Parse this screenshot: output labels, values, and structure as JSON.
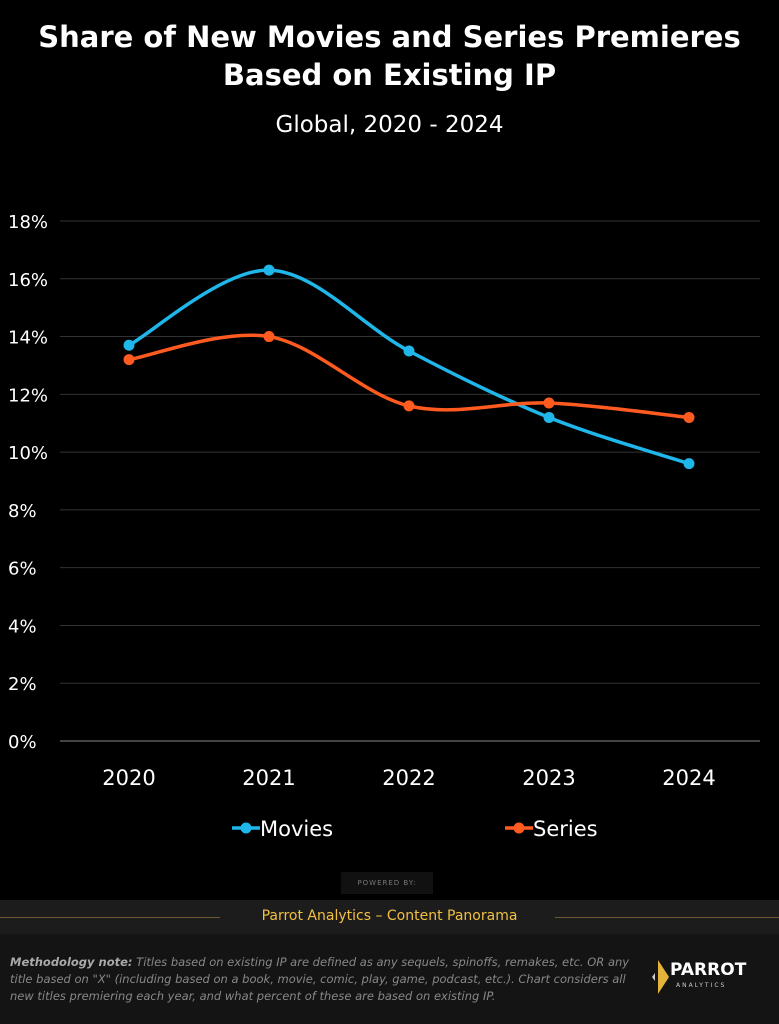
{
  "chart_data": {
    "type": "line",
    "title": "Share of New Movies and Series Premieres Based on Existing IP",
    "subtitle": "Global, 2020 - 2024",
    "categories": [
      "2020",
      "2021",
      "2022",
      "2023",
      "2024"
    ],
    "series": [
      {
        "name": "Movies",
        "color": "#1fb6ea",
        "values": [
          13.7,
          16.3,
          13.5,
          11.2,
          9.6
        ]
      },
      {
        "name": "Series",
        "color": "#ff5a1f",
        "values": [
          13.2,
          14.0,
          11.6,
          11.7,
          11.2
        ]
      }
    ],
    "ylim": [
      0,
      18
    ],
    "yticks": [
      "0%",
      "2%",
      "4%",
      "6%",
      "8%",
      "10%",
      "12%",
      "14%",
      "16%",
      "18%"
    ],
    "grid": true,
    "legend": "bottom"
  },
  "footer": {
    "powered_by": "POWERED BY:",
    "brand_line": "Parrot Analytics – Content Panorama",
    "note_label": "Methodology note:",
    "note_text": " Titles based on existing IP are defined as any sequels, spinoffs, remakes, etc. OR any title based on \"X\" (including based on a book, movie, comic, play, game, podcast, etc.).  Chart considers all new titles premiering each year, and what percent of these are based on existing IP.",
    "logo_name": "PARROT",
    "logo_sub": "ANALYTICS"
  }
}
